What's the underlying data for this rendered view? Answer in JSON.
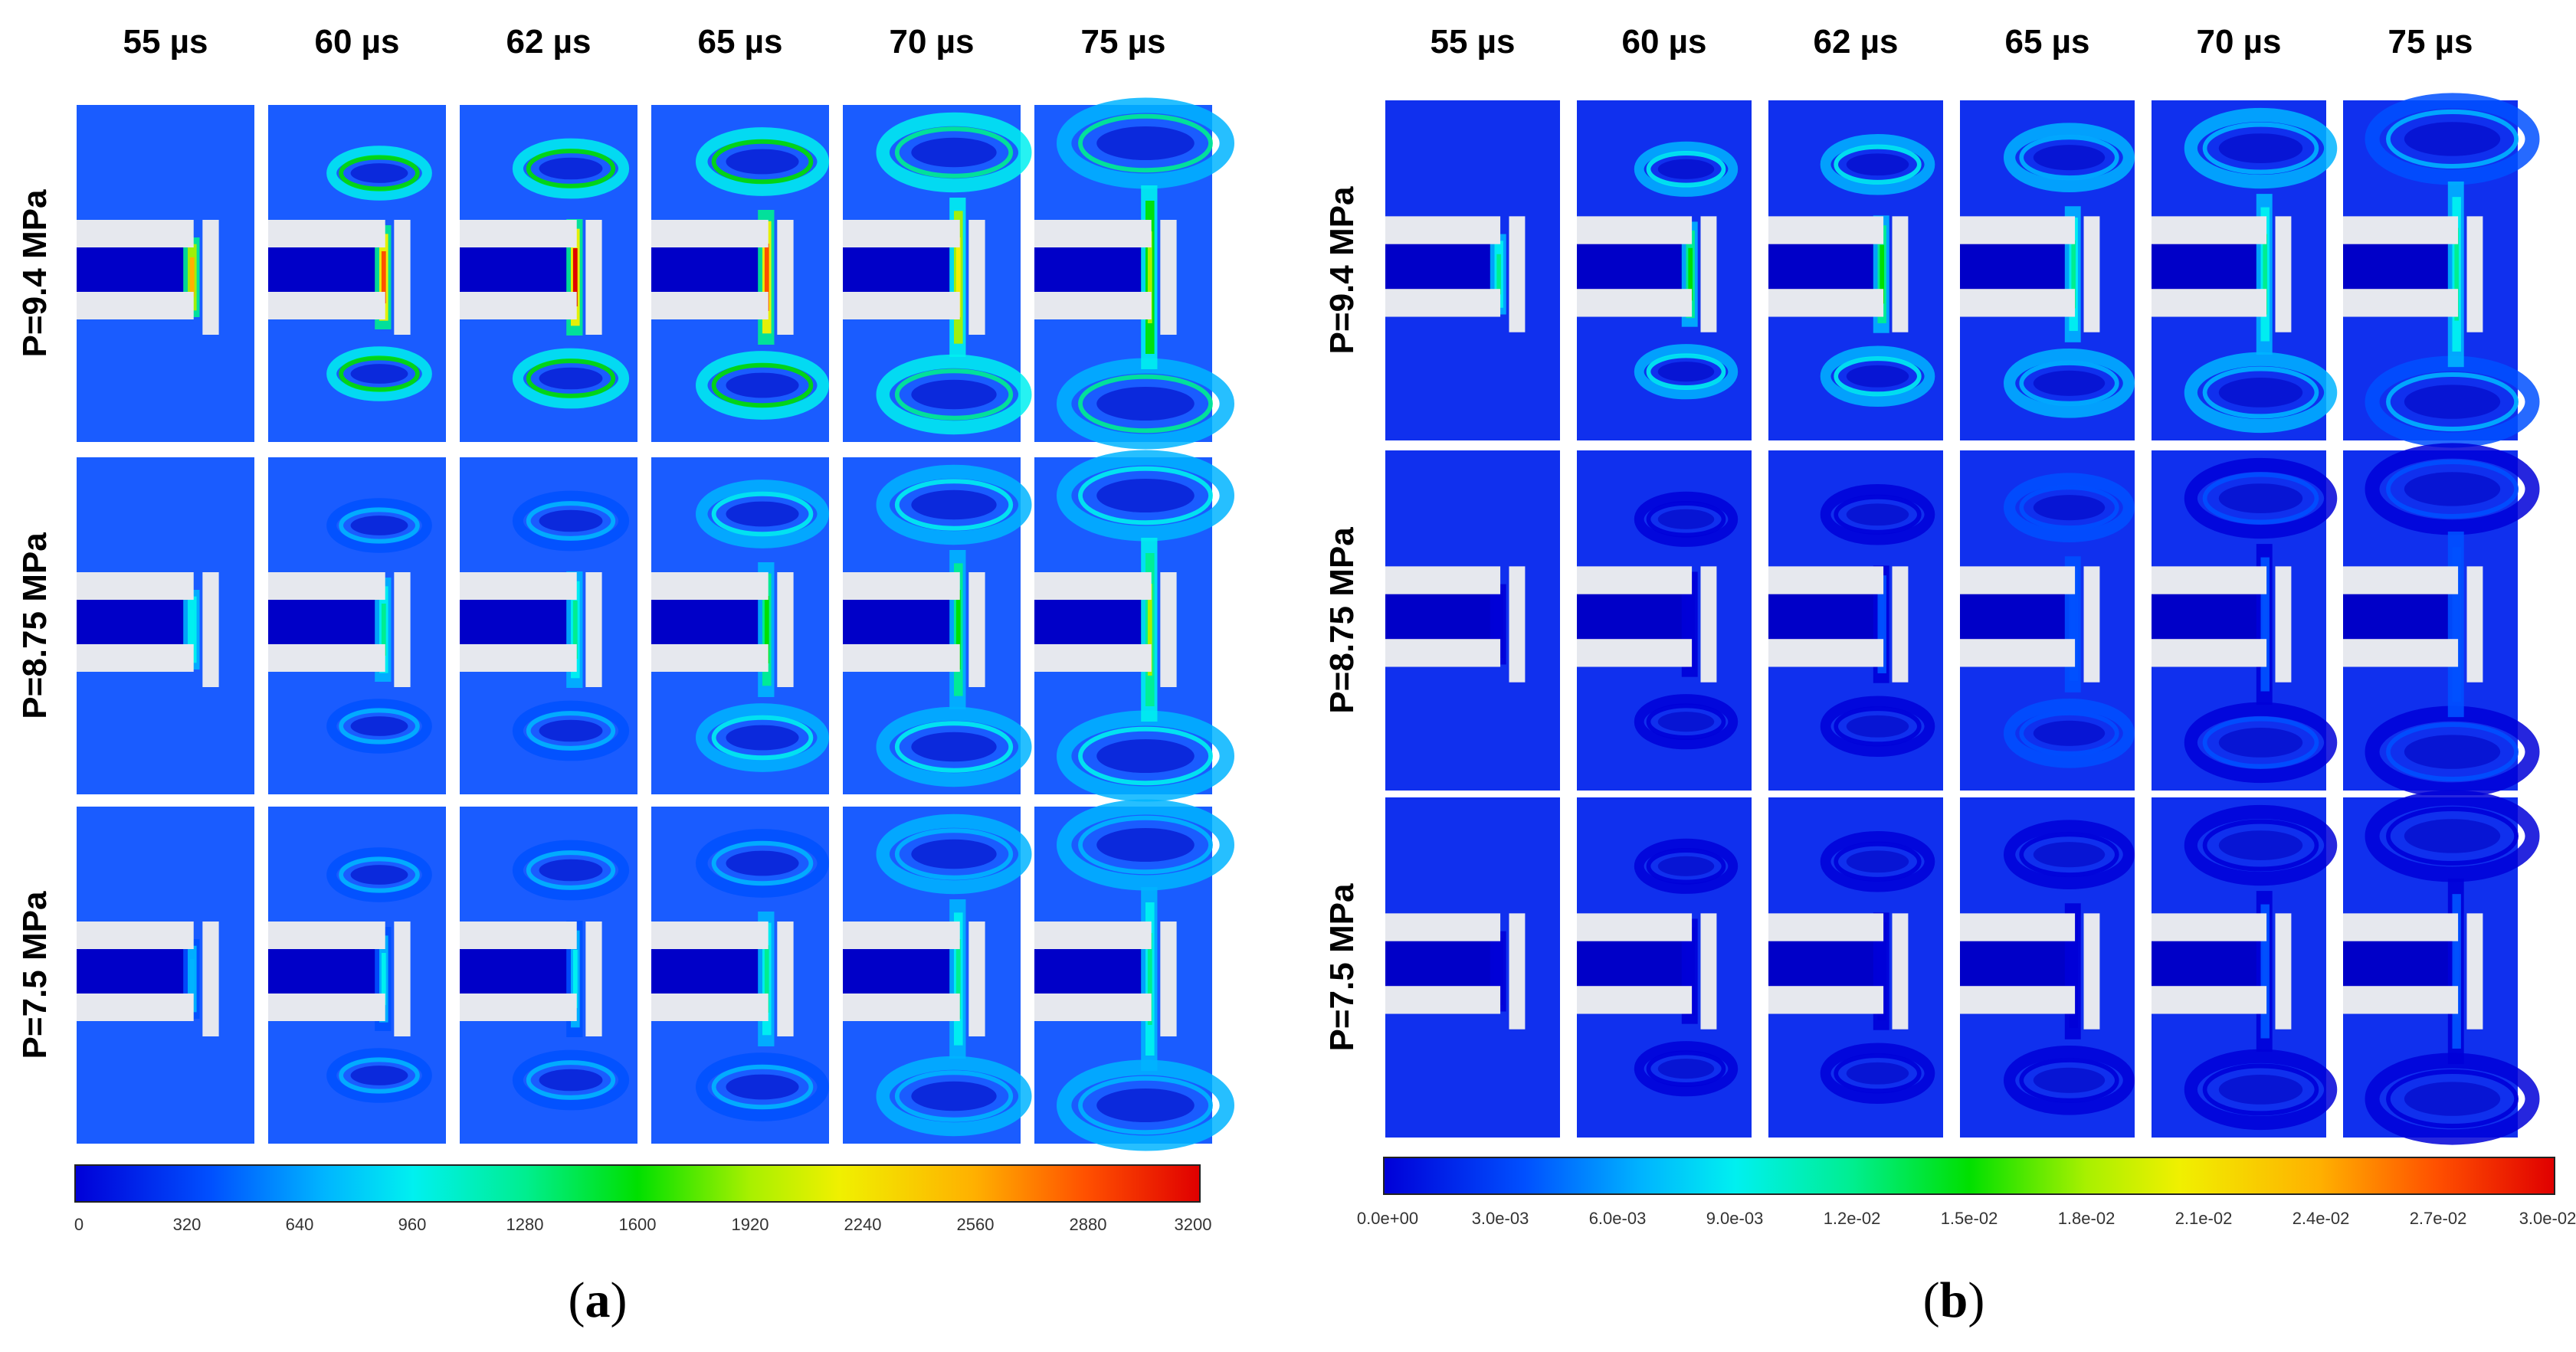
{
  "figure": {
    "panels": [
      {
        "id": "a",
        "caption_letter": "a",
        "time_labels": [
          "55 µs",
          "60 µs",
          "62 µs",
          "65 µs",
          "70 µs",
          "75 µs"
        ],
        "row_labels": [
          "P=9.4 MPa",
          "P=8.75 MPa",
          "P=7.5 MPa"
        ],
        "colorbar_ticks": [
          "0",
          "320",
          "640",
          "960",
          "1280",
          "1600",
          "1920",
          "2240",
          "2560",
          "2880",
          "3200"
        ],
        "colormap": [
          "#0000d8",
          "#0050ff",
          "#00b4ff",
          "#00f0f0",
          "#00ee90",
          "#00e000",
          "#a8f000",
          "#f0f000",
          "#ffb000",
          "#ff5000",
          "#e00000"
        ]
      },
      {
        "id": "b",
        "caption_letter": "b",
        "time_labels": [
          "55 µs",
          "60 µs",
          "62 µs",
          "65 µs",
          "70 µs",
          "75 µs"
        ],
        "row_labels": [
          "P=9.4 MPa",
          "P=8.75 MPa",
          "P=7.5 MPa"
        ],
        "colorbar_ticks": [
          "0.0e+00",
          "3.0e-03",
          "6.0e-03",
          "9.0e-03",
          "1.2e-02",
          "1.5e-02",
          "1.8e-02",
          "2.1e-02",
          "2.4e-02",
          "2.7e-02",
          "3.0e-02"
        ],
        "colormap": [
          "#0000d8",
          "#0050ff",
          "#00b4ff",
          "#00f0f0",
          "#00ee90",
          "#00e000",
          "#a8f000",
          "#f0f000",
          "#ffb000",
          "#ff5000",
          "#e00000"
        ]
      }
    ],
    "colors": {
      "field_background": "#1a5cff",
      "jet_core": "#0000c8",
      "solid_wall": "#e6e8ee",
      "background_b": "#1030ee"
    }
  }
}
